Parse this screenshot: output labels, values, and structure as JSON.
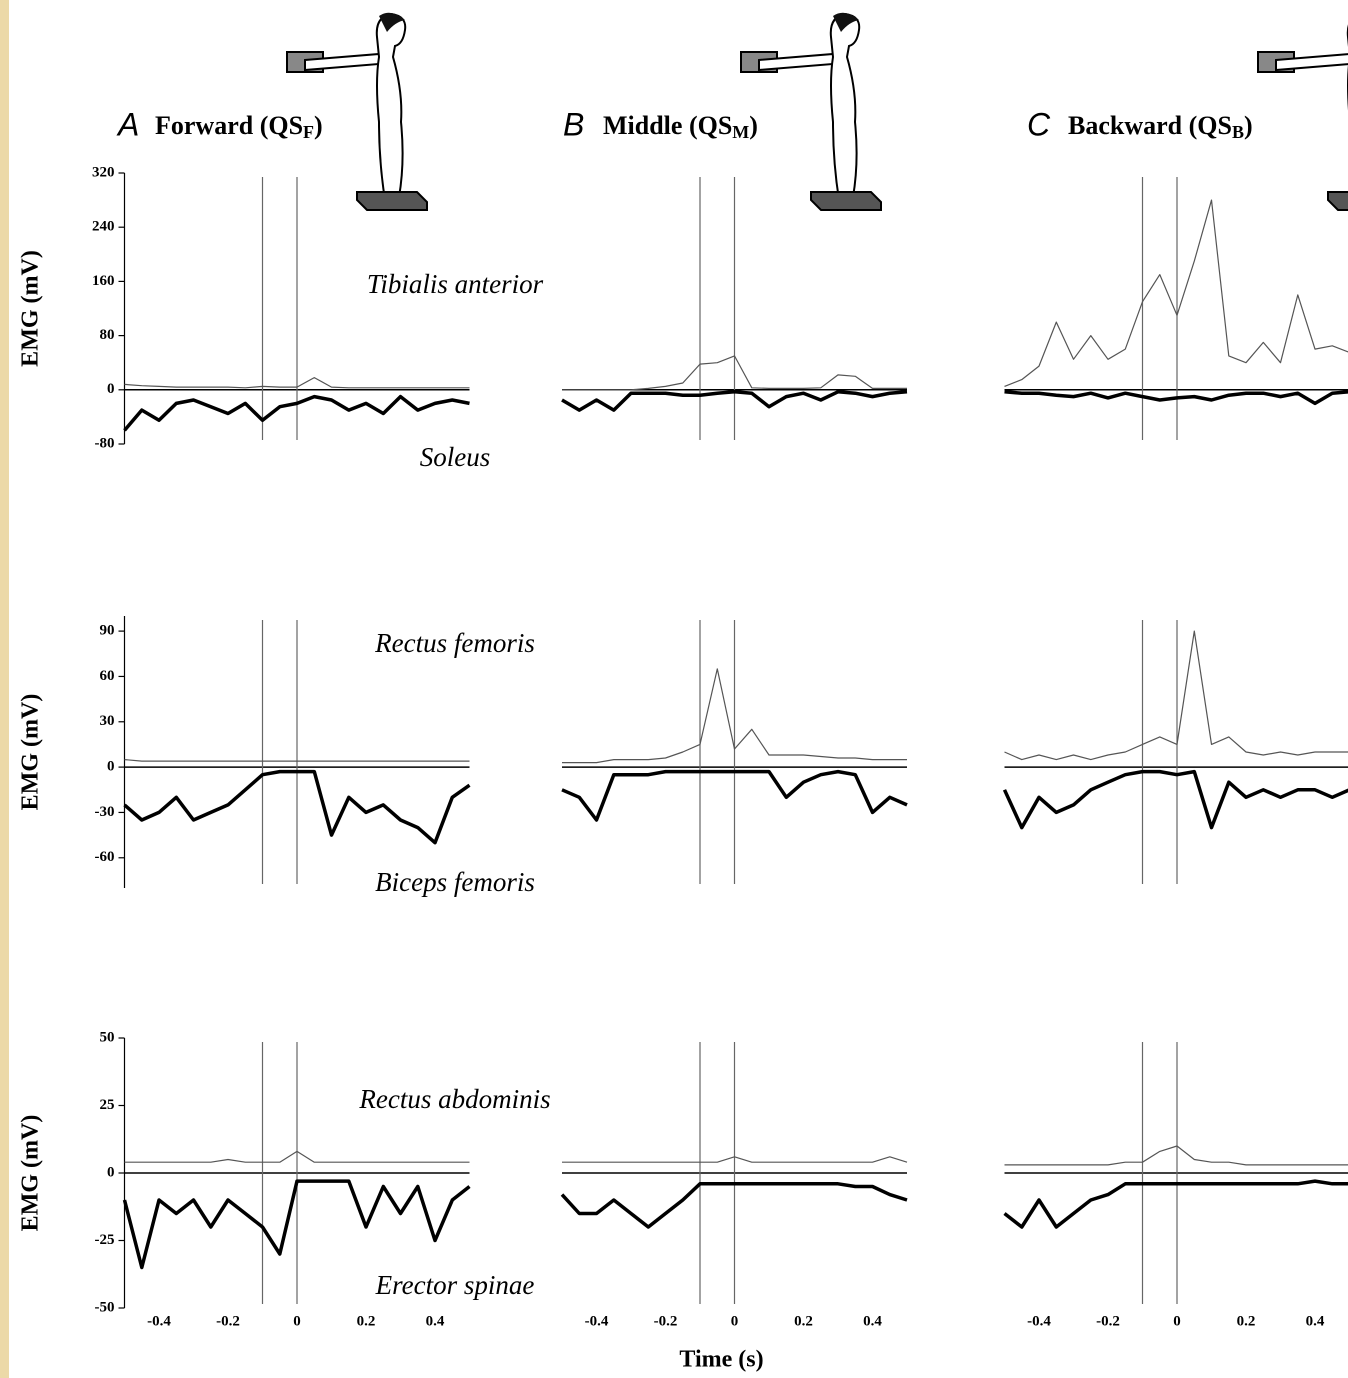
{
  "chart_data": [
    {
      "type": "line",
      "panel_label": "A",
      "title": "Forward (QS",
      "title_subscript": "F",
      "title_suffix": ")",
      "y_label": "EMG (mV)",
      "x": [
        -0.5,
        -0.45,
        -0.4,
        -0.35,
        -0.3,
        -0.25,
        -0.2,
        -0.15,
        -0.1,
        -0.05,
        0,
        0.05,
        0.1,
        0.15,
        0.2,
        0.25,
        0.3,
        0.35,
        0.4,
        0.45,
        0.5
      ],
      "series": [
        {
          "name": "Tibialis anterior",
          "color": "#555555",
          "values": [
            8,
            6,
            5,
            4,
            4,
            4,
            4,
            3,
            5,
            4,
            4,
            18,
            4,
            3,
            3,
            3,
            3,
            3,
            3,
            3,
            3
          ]
        },
        {
          "name": "Soleus",
          "color": "#000000",
          "values": [
            -60,
            -30,
            -45,
            -20,
            -15,
            -25,
            -35,
            -20,
            -45,
            -25,
            -20,
            -10,
            -15,
            -30,
            -20,
            -35,
            -10,
            -30,
            -20,
            -15,
            -20
          ]
        }
      ],
      "xlim": [
        -0.5,
        0.5
      ],
      "ylim": [
        -80,
        320
      ],
      "yticks": [
        -80,
        0,
        80,
        160,
        240,
        320
      ],
      "vlines": [
        -0.1,
        0
      ]
    },
    {
      "type": "line",
      "panel_label": "B",
      "title": "Middle (QS",
      "title_subscript": "M",
      "title_suffix": ")",
      "x": [
        -0.5,
        -0.45,
        -0.4,
        -0.35,
        -0.3,
        -0.25,
        -0.2,
        -0.15,
        -0.1,
        -0.05,
        0,
        0.05,
        0.1,
        0.15,
        0.2,
        0.25,
        0.3,
        0.35,
        0.4,
        0.45,
        0.5
      ],
      "series": [
        {
          "color": "#555555",
          "values": [
            0,
            0,
            0,
            0,
            0,
            2,
            5,
            10,
            38,
            40,
            50,
            3,
            2,
            2,
            2,
            3,
            22,
            20,
            2,
            2,
            2
          ]
        },
        {
          "color": "#000000",
          "values": [
            -15,
            -30,
            -15,
            -30,
            -5,
            -5,
            -5,
            -8,
            -8,
            -5,
            -3,
            -5,
            -25,
            -10,
            -5,
            -15,
            -3,
            -5,
            -10,
            -5,
            -3
          ]
        }
      ],
      "xlim": [
        -0.5,
        0.5
      ],
      "ylim": [
        -80,
        320
      ],
      "vlines": [
        -0.1,
        0
      ]
    },
    {
      "type": "line",
      "panel_label": "C",
      "title": "Backward (QS",
      "title_subscript": "B",
      "title_suffix": ")",
      "x": [
        -0.5,
        -0.45,
        -0.4,
        -0.35,
        -0.3,
        -0.25,
        -0.2,
        -0.15,
        -0.1,
        -0.05,
        0,
        0.05,
        0.1,
        0.15,
        0.2,
        0.25,
        0.3,
        0.35,
        0.4,
        0.45,
        0.5
      ],
      "series": [
        {
          "color": "#555555",
          "values": [
            5,
            15,
            35,
            100,
            45,
            80,
            45,
            60,
            130,
            170,
            110,
            190,
            280,
            50,
            40,
            70,
            40,
            140,
            60,
            65,
            55
          ]
        },
        {
          "color": "#000000",
          "values": [
            -3,
            -5,
            -5,
            -8,
            -10,
            -5,
            -12,
            -5,
            -10,
            -15,
            -12,
            -10,
            -15,
            -8,
            -5,
            -5,
            -10,
            -5,
            -20,
            -5,
            -3
          ]
        }
      ],
      "xlim": [
        -0.5,
        0.5
      ],
      "ylim": [
        -80,
        320
      ],
      "vlines": [
        -0.1,
        0
      ]
    },
    {
      "type": "line",
      "y_label": "EMG (mV)",
      "x": [
        -0.5,
        -0.45,
        -0.4,
        -0.35,
        -0.3,
        -0.25,
        -0.2,
        -0.15,
        -0.1,
        -0.05,
        0,
        0.05,
        0.1,
        0.15,
        0.2,
        0.25,
        0.3,
        0.35,
        0.4,
        0.45,
        0.5
      ],
      "series": [
        {
          "name": "Rectus femoris",
          "color": "#555555",
          "values": [
            5,
            4,
            4,
            4,
            4,
            4,
            4,
            4,
            4,
            4,
            4,
            4,
            4,
            4,
            4,
            4,
            4,
            4,
            4,
            4,
            4
          ]
        },
        {
          "name": "Biceps femoris",
          "color": "#000000",
          "values": [
            -25,
            -35,
            -30,
            -20,
            -35,
            -30,
            -25,
            -15,
            -5,
            -3,
            -3,
            -3,
            -45,
            -20,
            -30,
            -25,
            -35,
            -40,
            -50,
            -20,
            -12
          ]
        }
      ],
      "xlim": [
        -0.5,
        0.5
      ],
      "ylim": [
        -80,
        100
      ],
      "yticks": [
        -60,
        -30,
        0,
        30,
        60,
        90
      ],
      "vlines": [
        -0.1,
        0
      ]
    },
    {
      "type": "line",
      "x": [
        -0.5,
        -0.45,
        -0.4,
        -0.35,
        -0.3,
        -0.25,
        -0.2,
        -0.15,
        -0.1,
        -0.05,
        0,
        0.05,
        0.1,
        0.15,
        0.2,
        0.25,
        0.3,
        0.35,
        0.4,
        0.45,
        0.5
      ],
      "series": [
        {
          "color": "#555555",
          "values": [
            3,
            3,
            3,
            5,
            5,
            5,
            6,
            10,
            15,
            65,
            12,
            25,
            8,
            8,
            8,
            7,
            6,
            6,
            5,
            5,
            5
          ]
        },
        {
          "color": "#000000",
          "values": [
            -15,
            -20,
            -35,
            -5,
            -5,
            -5,
            -3,
            -3,
            -3,
            -3,
            -3,
            -3,
            -3,
            -20,
            -10,
            -5,
            -3,
            -5,
            -30,
            -20,
            -25
          ]
        }
      ],
      "xlim": [
        -0.5,
        0.5
      ],
      "ylim": [
        -80,
        100
      ],
      "vlines": [
        -0.1,
        0
      ]
    },
    {
      "type": "line",
      "x": [
        -0.5,
        -0.45,
        -0.4,
        -0.35,
        -0.3,
        -0.25,
        -0.2,
        -0.15,
        -0.1,
        -0.05,
        0,
        0.05,
        0.1,
        0.15,
        0.2,
        0.25,
        0.3,
        0.35,
        0.4,
        0.45,
        0.5
      ],
      "series": [
        {
          "color": "#555555",
          "values": [
            10,
            5,
            8,
            5,
            8,
            5,
            8,
            10,
            15,
            20,
            15,
            90,
            15,
            20,
            10,
            8,
            10,
            8,
            10,
            10,
            10
          ]
        },
        {
          "color": "#000000",
          "values": [
            -15,
            -40,
            -20,
            -30,
            -25,
            -15,
            -10,
            -5,
            -3,
            -3,
            -5,
            -3,
            -40,
            -10,
            -20,
            -15,
            -20,
            -15,
            -15,
            -20,
            -15
          ]
        }
      ],
      "xlim": [
        -0.5,
        0.5
      ],
      "ylim": [
        -80,
        100
      ],
      "vlines": [
        -0.1,
        0
      ]
    },
    {
      "type": "line",
      "y_label": "EMG (mV)",
      "x": [
        -0.5,
        -0.45,
        -0.4,
        -0.35,
        -0.3,
        -0.25,
        -0.2,
        -0.15,
        -0.1,
        -0.05,
        0,
        0.05,
        0.1,
        0.15,
        0.2,
        0.25,
        0.3,
        0.35,
        0.4,
        0.45,
        0.5
      ],
      "series": [
        {
          "name": "Rectus abdominis",
          "color": "#555555",
          "values": [
            4,
            4,
            4,
            4,
            4,
            4,
            5,
            4,
            4,
            4,
            8,
            4,
            4,
            4,
            4,
            4,
            4,
            4,
            4,
            4,
            4
          ]
        },
        {
          "name": "Erector spinae",
          "color": "#000000",
          "values": [
            -10,
            -35,
            -10,
            -15,
            -10,
            -20,
            -10,
            -15,
            -20,
            -30,
            -3,
            -3,
            -3,
            -3,
            -20,
            -5,
            -15,
            -5,
            -25,
            -10,
            -5
          ]
        }
      ],
      "xlim": [
        -0.5,
        0.5
      ],
      "ylim": [
        -50,
        50
      ],
      "yticks": [
        -50,
        -25,
        0,
        25,
        50
      ],
      "xticks": [
        -0.4,
        -0.2,
        0,
        0.2,
        0.4
      ],
      "vlines": [
        -0.1,
        0
      ]
    },
    {
      "type": "line",
      "x_label": "Time (s)",
      "x": [
        -0.5,
        -0.45,
        -0.4,
        -0.35,
        -0.3,
        -0.25,
        -0.2,
        -0.15,
        -0.1,
        -0.05,
        0,
        0.05,
        0.1,
        0.15,
        0.2,
        0.25,
        0.3,
        0.35,
        0.4,
        0.45,
        0.5
      ],
      "series": [
        {
          "color": "#555555",
          "values": [
            4,
            4,
            4,
            4,
            4,
            4,
            4,
            4,
            4,
            4,
            6,
            4,
            4,
            4,
            4,
            4,
            4,
            4,
            4,
            6,
            4
          ]
        },
        {
          "color": "#000000",
          "values": [
            -8,
            -15,
            -15,
            -10,
            -15,
            -20,
            -15,
            -10,
            -4,
            -4,
            -4,
            -4,
            -4,
            -4,
            -4,
            -4,
            -4,
            -5,
            -5,
            -8,
            -10
          ]
        }
      ],
      "xlim": [
        -0.5,
        0.5
      ],
      "ylim": [
        -50,
        50
      ],
      "xticks": [
        -0.4,
        -0.2,
        0,
        0.2,
        0.4
      ],
      "vlines": [
        -0.1,
        0
      ]
    },
    {
      "type": "line",
      "x": [
        -0.5,
        -0.45,
        -0.4,
        -0.35,
        -0.3,
        -0.25,
        -0.2,
        -0.15,
        -0.1,
        -0.05,
        0,
        0.05,
        0.1,
        0.15,
        0.2,
        0.25,
        0.3,
        0.35,
        0.4,
        0.45,
        0.5
      ],
      "series": [
        {
          "color": "#555555",
          "values": [
            3,
            3,
            3,
            3,
            3,
            3,
            3,
            4,
            4,
            8,
            10,
            5,
            4,
            4,
            3,
            3,
            3,
            3,
            3,
            3,
            3
          ]
        },
        {
          "color": "#000000",
          "values": [
            -15,
            -20,
            -10,
            -20,
            -15,
            -10,
            -8,
            -4,
            -4,
            -4,
            -4,
            -4,
            -4,
            -4,
            -4,
            -4,
            -4,
            -4,
            -3,
            -4,
            -4
          ]
        }
      ],
      "xlim": [
        -0.5,
        0.5
      ],
      "ylim": [
        -50,
        50
      ],
      "xticks": [
        -0.4,
        -0.2,
        0,
        0.2,
        0.4
      ],
      "vlines": [
        -0.1,
        0
      ]
    }
  ]
}
